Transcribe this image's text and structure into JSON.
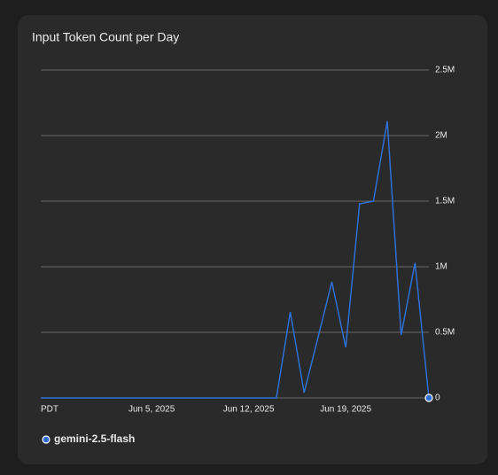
{
  "chart_data": {
    "type": "line",
    "title": "Input Token Count per Day",
    "timezone_label": "PDT",
    "x": [
      "2025-05-28",
      "2025-05-29",
      "2025-05-30",
      "2025-05-31",
      "2025-06-01",
      "2025-06-02",
      "2025-06-03",
      "2025-06-04",
      "2025-06-05",
      "2025-06-06",
      "2025-06-07",
      "2025-06-08",
      "2025-06-09",
      "2025-06-10",
      "2025-06-11",
      "2025-06-12",
      "2025-06-13",
      "2025-06-14",
      "2025-06-15",
      "2025-06-16",
      "2025-06-17",
      "2025-06-18",
      "2025-06-19",
      "2025-06-20",
      "2025-06-21",
      "2025-06-22",
      "2025-06-23",
      "2025-06-24",
      "2025-06-25"
    ],
    "series": [
      {
        "name": "gemini-2.5-flash",
        "color": "#2f6fd6",
        "values": [
          0,
          0,
          0,
          0,
          0,
          0,
          0,
          0,
          0,
          0,
          0,
          0,
          0,
          0,
          0,
          0,
          0,
          0,
          655000,
          40000,
          460000,
          885000,
          385000,
          1480000,
          1500000,
          2110000,
          480000,
          1030000,
          0
        ]
      }
    ],
    "xlim": [
      "2025-05-28",
      "2025-06-25"
    ],
    "xticks": [
      {
        "value": "2025-06-05",
        "label": "Jun 5, 2025"
      },
      {
        "value": "2025-06-12",
        "label": "Jun 12, 2025"
      },
      {
        "value": "2025-06-19",
        "label": "Jun 19, 2025"
      }
    ],
    "ylim": [
      0,
      2500000
    ],
    "yticks": [
      {
        "value": 0,
        "label": "0"
      },
      {
        "value": 500000,
        "label": "0.5M"
      },
      {
        "value": 1000000,
        "label": "1M"
      },
      {
        "value": 1500000,
        "label": "1.5M"
      },
      {
        "value": 2000000,
        "label": "2M"
      },
      {
        "value": 2500000,
        "label": "2.5M"
      }
    ],
    "grid": true
  }
}
